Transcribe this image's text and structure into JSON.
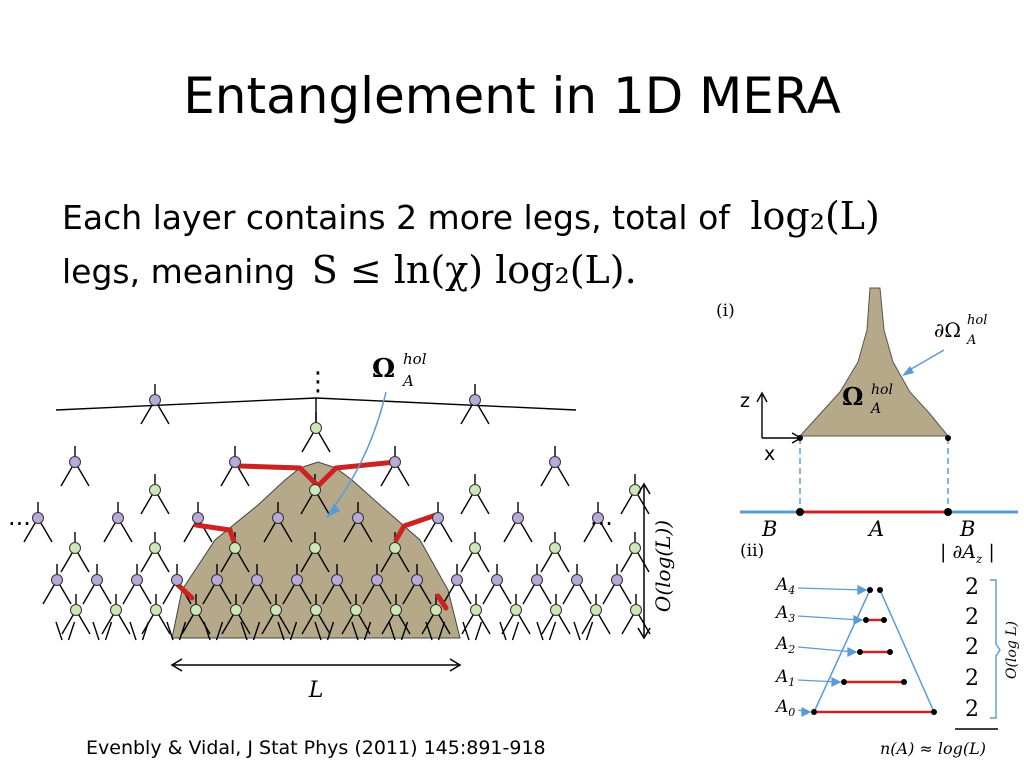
{
  "slide": {
    "title": "Entanglement in 1D MERA",
    "bullet": {
      "line1_text": "Each layer contains 2 more legs, total of",
      "line1_math": "log₂(L)",
      "line2_text": "legs, meaning",
      "line2_math": "S ≤ ln(χ) log₂(L)."
    },
    "citation": "Evenbly & Vidal, J Stat Phys (2011) 145:891-918"
  },
  "left_figure": {
    "region_label": "Ω",
    "region_sup": "hol",
    "region_sub": "A",
    "vdots": "⋮",
    "left_ellipsis": "···",
    "right_ellipsis": "···",
    "scale_label": "O(log(L))",
    "width_label": "L",
    "colors": {
      "region_fill": "#b5a98a",
      "cut_red": "#cc2222",
      "violet_node": "#b9a9d8",
      "green_node": "#cfe6b6",
      "arrow_blue": "#5b9bd5"
    }
  },
  "right_figure": {
    "panel_i": "(i)",
    "panel_ii": "(ii)",
    "boundary_label": "∂Ω",
    "boundary_sup": "hol",
    "boundary_sub": "A",
    "region_label": "Ω",
    "region_sup": "hol",
    "region_sub": "A",
    "axis_z": "z",
    "axis_x": "x",
    "bath_left": "B",
    "subsystem": "A",
    "bath_right": "B",
    "cut_header": "| ∂A",
    "cut_header_sub": "z",
    "cut_header_end": " |",
    "levels": [
      "A",
      "A",
      "A",
      "A",
      "A"
    ],
    "level_subs": [
      "4",
      "3",
      "2",
      "1",
      "0"
    ],
    "cut_counts": [
      "2",
      "2",
      "2",
      "2",
      "2"
    ],
    "brace_label": "O(log L)",
    "formula": "n(A) ≈ log(L)",
    "colors": {
      "line_blue": "#5b9bd5",
      "line_red": "#cc2222",
      "shape_fill": "#b5a98a"
    }
  }
}
